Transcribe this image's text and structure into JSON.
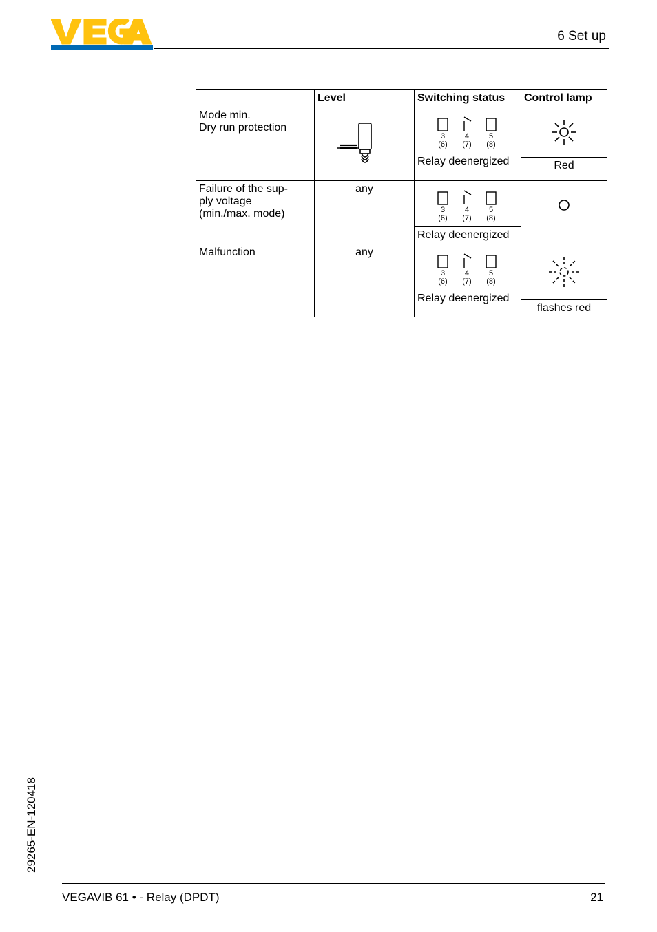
{
  "header": {
    "section": "6  Set up"
  },
  "footer": {
    "product": "VEGAVIB 61 •  - Relay (DPDT)",
    "page": "21",
    "doccode": "29265-EN-120418"
  },
  "logo": {
    "text": "VEGA",
    "bar_color": "#0069b4",
    "fill_color": "#ffc20e"
  },
  "table": {
    "headers": [
      "",
      "Level",
      "Switching status",
      "Control lamp"
    ],
    "rows": [
      {
        "desc": {
          "lines": [
            "Mode min.",
            "Dry run protection"
          ]
        },
        "level": {
          "type": "probe",
          "text": ""
        },
        "status": {
          "relay": true,
          "text": "Relay deenergized"
        },
        "lamp": {
          "type": "on",
          "text": "Red"
        }
      },
      {
        "desc": {
          "lines": [
            "Failure of the sup-",
            "ply voltage",
            "(min./max. mode)"
          ]
        },
        "level": {
          "type": "text",
          "text": "any"
        },
        "status": {
          "relay": true,
          "text": "Relay deenergized"
        },
        "lamp": {
          "type": "off",
          "text": ""
        }
      },
      {
        "desc": {
          "lines": [
            "Malfunction"
          ]
        },
        "level": {
          "type": "text",
          "text": "any"
        },
        "status": {
          "relay": true,
          "text": "Relay deenergized"
        },
        "lamp": {
          "type": "flash",
          "text": "flashes red"
        }
      }
    ],
    "relay_labels": {
      "top": [
        "3",
        "4",
        "5"
      ],
      "bottom": [
        "(6)",
        "(7)",
        "(8)"
      ]
    }
  }
}
